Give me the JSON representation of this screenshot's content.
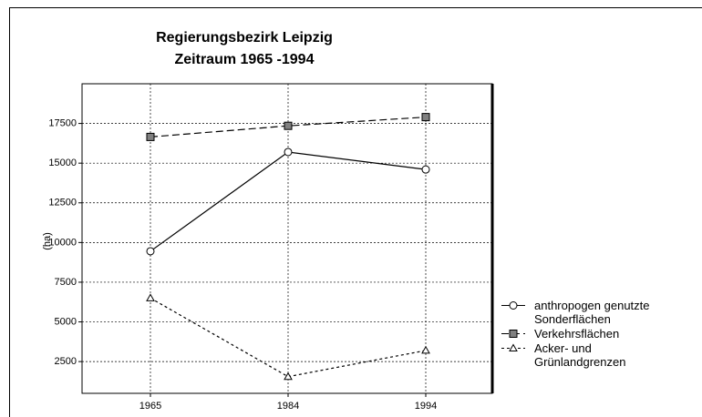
{
  "chart_data": {
    "type": "line",
    "title": "Regierungsbezirk Leipzig",
    "subtitle": "Zeitraum 1965 -1994",
    "y_label": "(ha)",
    "categories": [
      "1965",
      "1984",
      "1994"
    ],
    "series": [
      {
        "name": "anthropogen genutzte Sonderflächen",
        "color": "#000000",
        "marker": "circle",
        "marker_fill": "#ffffff",
        "dash": "solid",
        "values": [
          9450,
          15700,
          14600
        ]
      },
      {
        "name": "Verkehrsflächen",
        "color": "#000000",
        "marker": "square",
        "marker_fill": "#808080",
        "dash": "dashed",
        "values": [
          16650,
          17350,
          17900
        ]
      },
      {
        "name": "Acker- und Grünlandgrenzen",
        "color": "#000000",
        "marker": "triangle",
        "marker_fill": "#ffffff",
        "dash": "dotted",
        "values": [
          6500,
          1550,
          3200
        ]
      }
    ],
    "ylim": [
      500,
      20000
    ],
    "yticks": [
      2500,
      5000,
      7500,
      10000,
      12500,
      15000,
      17500
    ],
    "grid": true,
    "legend": "right"
  }
}
